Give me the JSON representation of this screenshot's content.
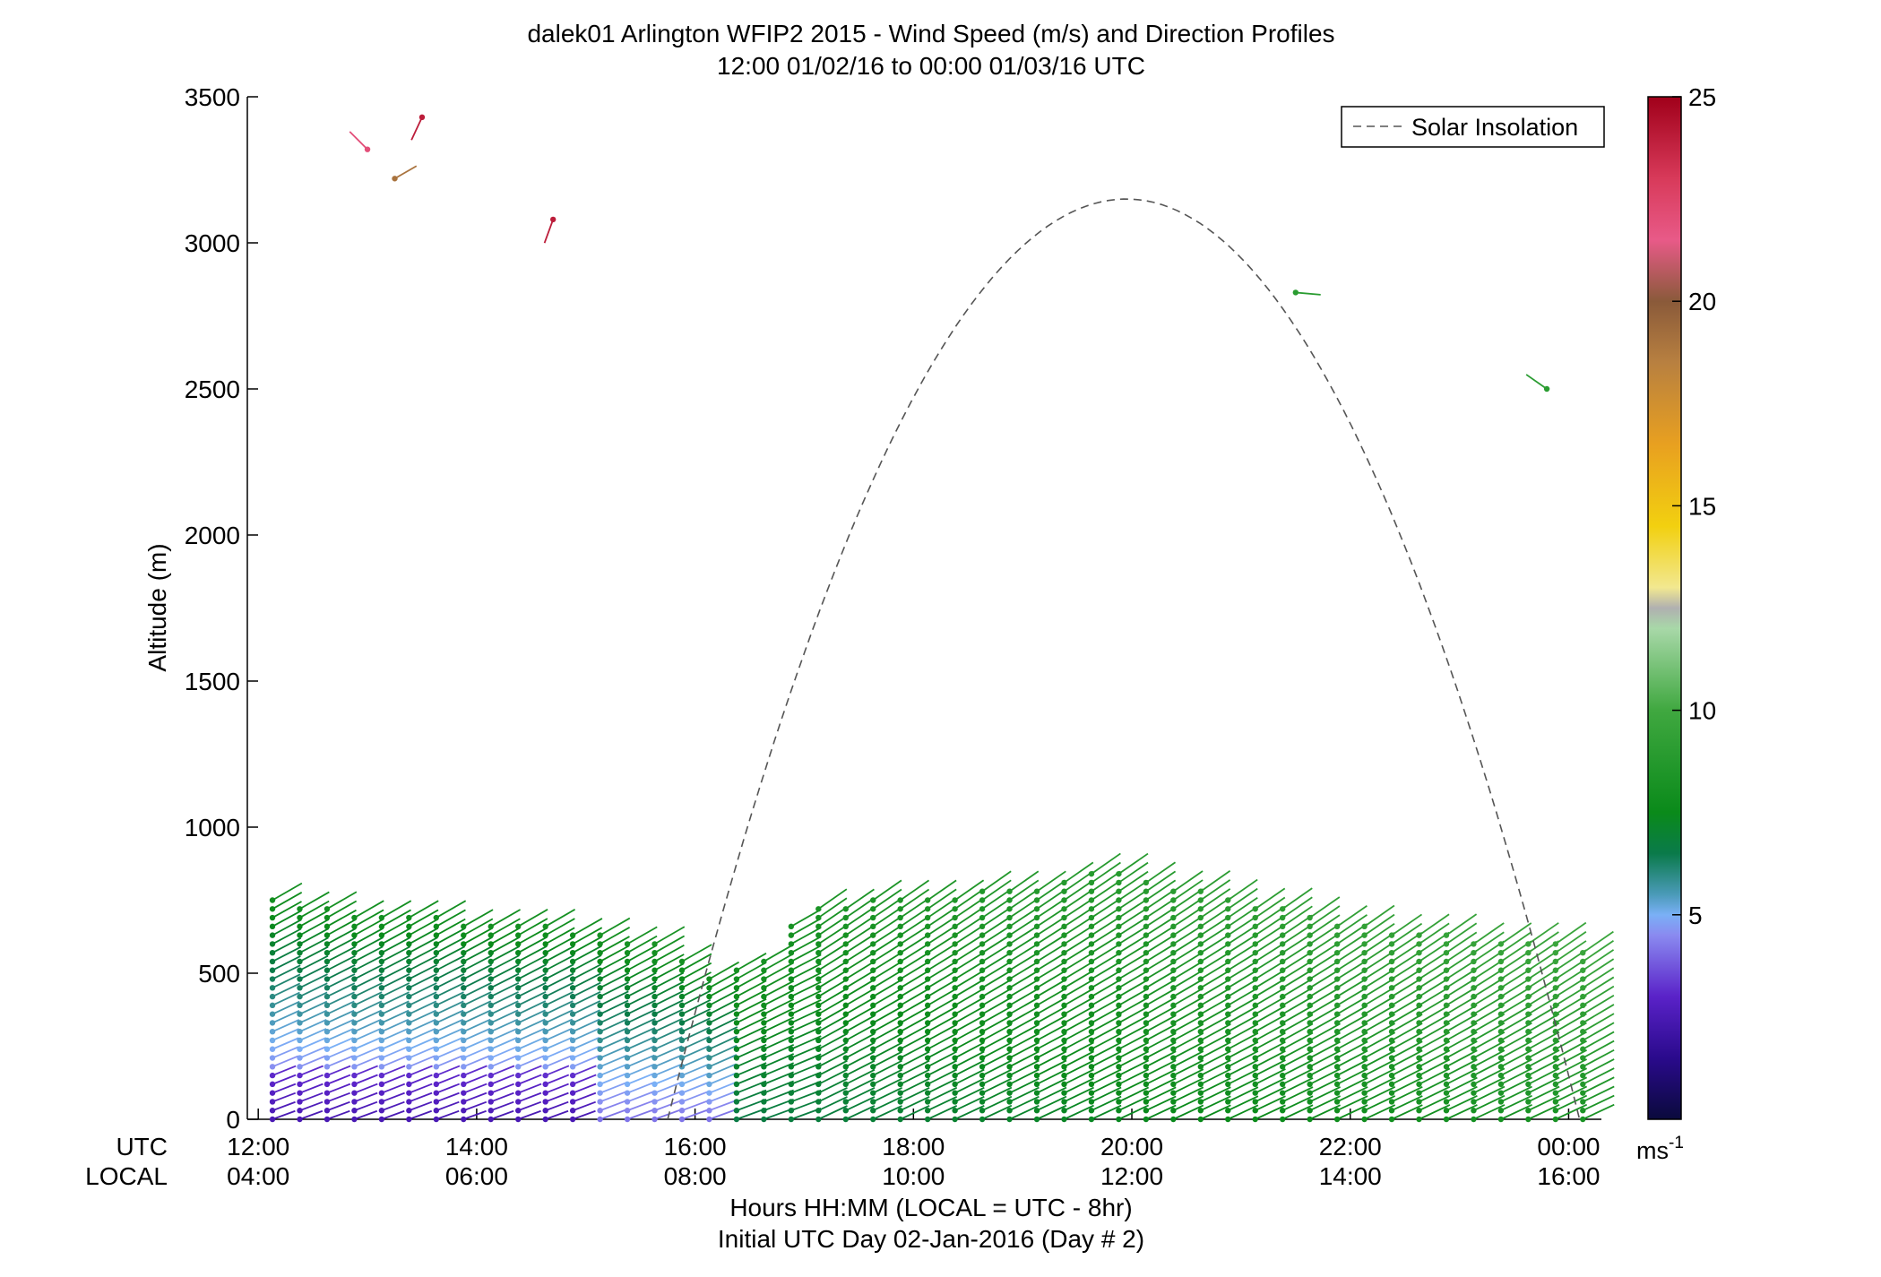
{
  "chart_data": {
    "type": "scatter",
    "title": "dalek01 Arlington WFIP2 2015 - Wind Speed (m/s) and Direction Profiles",
    "subtitle": "12:00 01/02/16 to 00:00 01/03/16  UTC",
    "ylabel": "Altitude (m)",
    "xlabel_1": "Hours HH:MM  (LOCAL = UTC - 8hr)",
    "xlabel_2": "Initial UTC Day 02-Jan-2016 (Day # 2)",
    "utc_row_label": "UTC",
    "local_row_label": "LOCAL",
    "xlim": [
      11.9,
      24.3
    ],
    "ylim": [
      0,
      3500
    ],
    "yticks": [
      0,
      500,
      1000,
      1500,
      2000,
      2500,
      3000,
      3500
    ],
    "xticks_utc": [
      {
        "v": 12,
        "label": "12:00"
      },
      {
        "v": 14,
        "label": "14:00"
      },
      {
        "v": 16,
        "label": "16:00"
      },
      {
        "v": 18,
        "label": "18:00"
      },
      {
        "v": 20,
        "label": "20:00"
      },
      {
        "v": 22,
        "label": "22:00"
      },
      {
        "v": 24,
        "label": "00:00"
      }
    ],
    "xticks_local": [
      "04:00",
      "06:00",
      "08:00",
      "10:00",
      "12:00",
      "14:00",
      "16:00"
    ],
    "legend": {
      "entries": [
        "Solar Insolation"
      ],
      "placement": "top-right"
    },
    "colorbar": {
      "min": 0,
      "max": 25,
      "ticks": [
        5,
        10,
        15,
        20,
        25
      ],
      "unit_label": "ms",
      "unit_sup": "-1"
    },
    "solar_insolation_curve": {
      "style": "dashed",
      "color": "#555555",
      "start_hour": 15.75,
      "peak_hour": 19.95,
      "peak_altitude": 3150,
      "end_hour": 24.1
    },
    "profile_hours": [
      12.13,
      12.38,
      12.63,
      12.88,
      13.13,
      13.38,
      13.63,
      13.88,
      14.13,
      14.38,
      14.63,
      14.88,
      15.13,
      15.38,
      15.63,
      15.88,
      16.13,
      16.38,
      16.63,
      16.88,
      17.13,
      17.38,
      17.63,
      17.88,
      18.13,
      18.38,
      18.63,
      18.88,
      19.13,
      19.38,
      19.63,
      19.88,
      20.13,
      20.38,
      20.63,
      20.88,
      21.13,
      21.38,
      21.63,
      21.88,
      22.13,
      22.38,
      22.63,
      22.88,
      23.13,
      23.38,
      23.63,
      23.88,
      24.13
    ],
    "profile_tops": [
      760,
      730,
      720,
      700,
      700,
      700,
      700,
      680,
      670,
      660,
      660,
      650,
      640,
      610,
      600,
      560,
      500,
      520,
      550,
      680,
      720,
      740,
      760,
      770,
      770,
      760,
      780,
      790,
      800,
      820,
      840,
      860,
      830,
      800,
      780,
      760,
      740,
      720,
      700,
      680,
      660,
      650,
      640,
      630,
      620,
      620,
      610,
      600,
      590
    ],
    "isolated_barbs": [
      {
        "hour": 13.0,
        "alt": 3320,
        "speed": 22,
        "dir": 315
      },
      {
        "hour": 13.5,
        "alt": 3430,
        "speed": 24,
        "dir": 205
      },
      {
        "hour": 13.25,
        "alt": 3220,
        "speed": 19,
        "dir": 60
      },
      {
        "hour": 14.7,
        "alt": 3080,
        "speed": 24,
        "dir": 200
      },
      {
        "hour": 21.5,
        "alt": 2830,
        "speed": 9,
        "dir": 95
      },
      {
        "hour": 23.8,
        "alt": 2500,
        "speed": 9,
        "dir": 305
      }
    ]
  }
}
